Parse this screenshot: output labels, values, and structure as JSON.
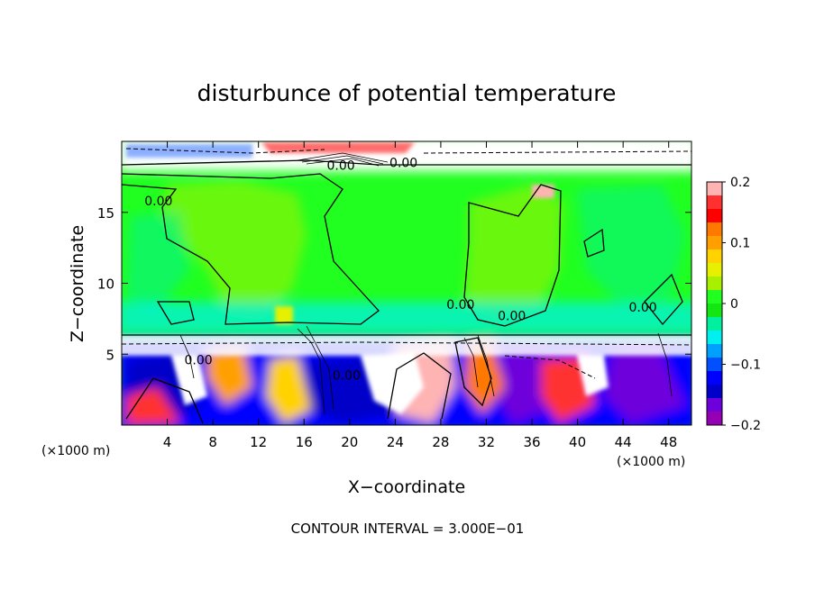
{
  "chart_data": {
    "type": "heatmap",
    "title": "disturbunce of potential temperature",
    "xlabel": "X−coordinate",
    "ylabel": "Z−coordinate",
    "x_unit": "(×1000 m)",
    "y_unit": "(×1000 m)",
    "xlim": [
      0,
      50
    ],
    "ylim": [
      0,
      20
    ],
    "x_ticks": [
      4,
      8,
      12,
      16,
      20,
      24,
      28,
      32,
      36,
      40,
      44,
      48
    ],
    "y_ticks": [
      5,
      10,
      15
    ],
    "colorbar": {
      "range": [
        -0.2,
        0.2
      ],
      "ticks": [
        0.2,
        0.1,
        0,
        -0.1,
        -0.2
      ],
      "tick_labels": [
        "0.2",
        "0.1",
        "0",
        "−0.1",
        "−0.2"
      ],
      "colors": [
        "#ffb4b4",
        "#ff3030",
        "#ff0000",
        "#ff7800",
        "#ffa000",
        "#ffd200",
        "#e6f000",
        "#a8f000",
        "#20ff20",
        "#14e614",
        "#00f0a0",
        "#00f0f0",
        "#00a0ff",
        "#0050ff",
        "#0000ff",
        "#0000c8",
        "#6e00dc",
        "#9600b4"
      ]
    },
    "contour_labels": [
      {
        "text": "0.00",
        "x": 2.0,
        "y": 15.5
      },
      {
        "text": "0.00",
        "x": 18.0,
        "y": 18.0
      },
      {
        "text": "0.00",
        "x": 23.5,
        "y": 18.2
      },
      {
        "text": "0.00",
        "x": 28.5,
        "y": 8.2
      },
      {
        "text": "0.00",
        "x": 33.0,
        "y": 7.4
      },
      {
        "text": "0.00",
        "x": 44.5,
        "y": 8.0
      },
      {
        "text": "0.00",
        "x": 5.5,
        "y": 4.3
      },
      {
        "text": "0.00",
        "x": 18.5,
        "y": 3.2
      }
    ],
    "contour_interval": "CONTOUR INTERVAL = 3.000E−01"
  }
}
